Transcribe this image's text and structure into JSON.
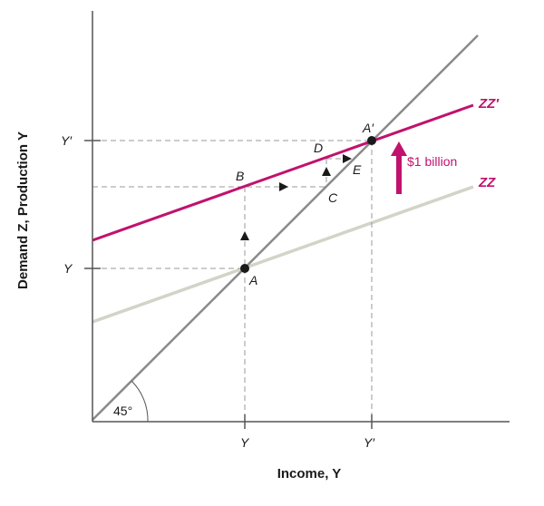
{
  "colors": {
    "zz_prime": "#c0126e",
    "zz": "#d3d3c8",
    "line_45": "#8a8a8a",
    "axis": "#555555",
    "guide": "#9a9a9a",
    "text": "#1a1a1a"
  },
  "axes": {
    "x_label": "Income, Y",
    "y_label": "Demand Z, Production Y",
    "x_ticks": [
      "Y",
      "Y′"
    ],
    "y_ticks": [
      "Y",
      "Y′"
    ]
  },
  "curves": {
    "zz_prime_label": "ZZ′",
    "zz_label": "ZZ",
    "angle_label": "45°"
  },
  "points": {
    "A": "A",
    "A_prime": "A′",
    "B": "B",
    "C": "C",
    "D": "D",
    "E": "E"
  },
  "shift": {
    "label": "$1 billion"
  }
}
